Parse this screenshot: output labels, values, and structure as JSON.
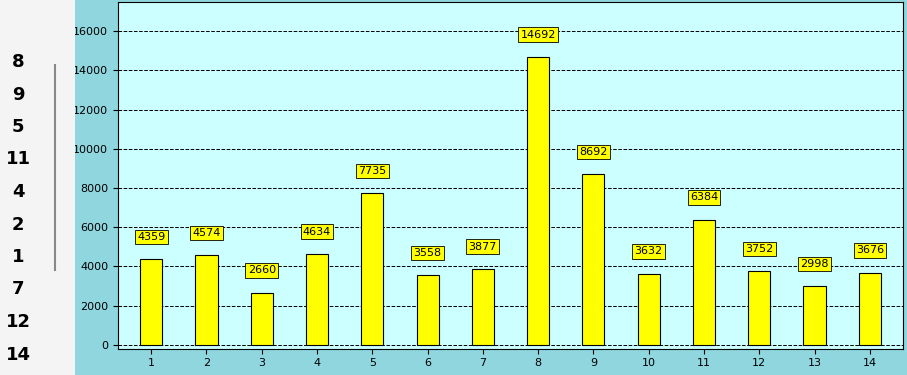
{
  "chart_data": {
    "type": "bar",
    "categories": [
      "1",
      "2",
      "3",
      "4",
      "5",
      "6",
      "7",
      "8",
      "9",
      "10",
      "11",
      "12",
      "13",
      "14"
    ],
    "values": [
      4359,
      4574,
      2660,
      4634,
      7735,
      3558,
      3877,
      14692,
      8692,
      3632,
      6384,
      3752,
      2998,
      3676
    ],
    "color": "#ffff00",
    "ylim": [
      -200,
      17500
    ],
    "yticks": [
      0,
      2000,
      4000,
      6000,
      8000,
      10000,
      12000,
      14000,
      16000
    ],
    "grid": true,
    "data_labels": true,
    "ranking": [
      8,
      9,
      5,
      11,
      4,
      2,
      1,
      7,
      12,
      14
    ]
  }
}
